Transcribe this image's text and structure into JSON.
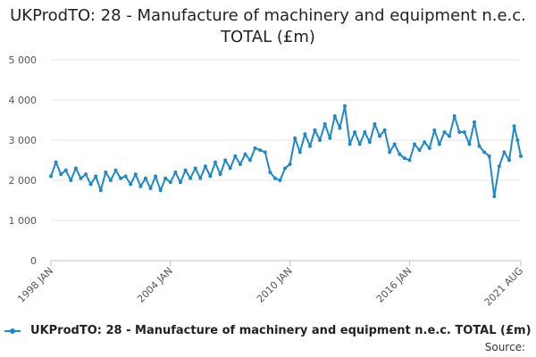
{
  "colors": {
    "series": "#1f88c9",
    "grid": "#e6e6e6",
    "axis": "#c0c0c0"
  },
  "chart_data": {
    "type": "line",
    "title": "UKProdTO: 28 - Manufacture of machinery and equipment n.e.c. TOTAL (£m)",
    "xlabel": "",
    "ylabel": "",
    "ylim": [
      0,
      5000
    ],
    "y_ticks": [
      "0",
      "1 000",
      "2 000",
      "3 000",
      "4 000",
      "5 000"
    ],
    "x_ticks": [
      "1998 JAN",
      "2004 JAN",
      "2010 JAN",
      "2016 JAN",
      "2021 AUG"
    ],
    "x_range": [
      "1998-01",
      "2021-08"
    ],
    "grid": true,
    "legend_position": "bottom",
    "series": [
      {
        "name": "UKProdTO: 28 - Manufacture of machinery and equipment n.e.c. TOTAL (£m)",
        "points": [
          [
            "1998-01",
            2100
          ],
          [
            "1998-04",
            2450
          ],
          [
            "1998-07",
            2150
          ],
          [
            "1998-10",
            2250
          ],
          [
            "1999-01",
            2000
          ],
          [
            "1999-04",
            2300
          ],
          [
            "1999-07",
            2050
          ],
          [
            "1999-10",
            2150
          ],
          [
            "2000-01",
            1900
          ],
          [
            "2000-04",
            2100
          ],
          [
            "2000-07",
            1750
          ],
          [
            "2000-10",
            2200
          ],
          [
            "2001-01",
            2000
          ],
          [
            "2001-04",
            2250
          ],
          [
            "2001-07",
            2050
          ],
          [
            "2001-10",
            2100
          ],
          [
            "2002-01",
            1900
          ],
          [
            "2002-04",
            2150
          ],
          [
            "2002-07",
            1850
          ],
          [
            "2002-10",
            2050
          ],
          [
            "2003-01",
            1800
          ],
          [
            "2003-04",
            2100
          ],
          [
            "2003-07",
            1750
          ],
          [
            "2003-10",
            2050
          ],
          [
            "2004-01",
            1950
          ],
          [
            "2004-04",
            2200
          ],
          [
            "2004-07",
            1950
          ],
          [
            "2004-10",
            2250
          ],
          [
            "2005-01",
            2050
          ],
          [
            "2005-04",
            2300
          ],
          [
            "2005-07",
            2050
          ],
          [
            "2005-10",
            2350
          ],
          [
            "2006-01",
            2100
          ],
          [
            "2006-04",
            2450
          ],
          [
            "2006-07",
            2150
          ],
          [
            "2006-10",
            2500
          ],
          [
            "2007-01",
            2300
          ],
          [
            "2007-04",
            2600
          ],
          [
            "2007-07",
            2400
          ],
          [
            "2007-10",
            2650
          ],
          [
            "2008-01",
            2500
          ],
          [
            "2008-04",
            2800
          ],
          [
            "2008-07",
            2750
          ],
          [
            "2008-10",
            2700
          ],
          [
            "2009-01",
            2200
          ],
          [
            "2009-04",
            2050
          ],
          [
            "2009-07",
            2000
          ],
          [
            "2009-10",
            2300
          ],
          [
            "2010-01",
            2400
          ],
          [
            "2010-04",
            3050
          ],
          [
            "2010-07",
            2700
          ],
          [
            "2010-10",
            3150
          ],
          [
            "2011-01",
            2850
          ],
          [
            "2011-04",
            3250
          ],
          [
            "2011-07",
            3000
          ],
          [
            "2011-10",
            3400
          ],
          [
            "2012-01",
            3050
          ],
          [
            "2012-04",
            3600
          ],
          [
            "2012-07",
            3300
          ],
          [
            "2012-10",
            3850
          ],
          [
            "2013-01",
            2900
          ],
          [
            "2013-04",
            3200
          ],
          [
            "2013-07",
            2900
          ],
          [
            "2013-10",
            3200
          ],
          [
            "2014-01",
            2950
          ],
          [
            "2014-04",
            3400
          ],
          [
            "2014-07",
            3100
          ],
          [
            "2014-10",
            3250
          ],
          [
            "2015-01",
            2700
          ],
          [
            "2015-04",
            2900
          ],
          [
            "2015-07",
            2650
          ],
          [
            "2015-10",
            2550
          ],
          [
            "2016-01",
            2500
          ],
          [
            "2016-04",
            2900
          ],
          [
            "2016-07",
            2750
          ],
          [
            "2016-10",
            2950
          ],
          [
            "2017-01",
            2800
          ],
          [
            "2017-04",
            3250
          ],
          [
            "2017-07",
            2900
          ],
          [
            "2017-10",
            3200
          ],
          [
            "2018-01",
            3100
          ],
          [
            "2018-04",
            3600
          ],
          [
            "2018-07",
            3200
          ],
          [
            "2018-10",
            3200
          ],
          [
            "2019-01",
            2900
          ],
          [
            "2019-04",
            3450
          ],
          [
            "2019-07",
            2850
          ],
          [
            "2019-10",
            2700
          ],
          [
            "2020-01",
            2600
          ],
          [
            "2020-04",
            1600
          ],
          [
            "2020-07",
            2350
          ],
          [
            "2020-10",
            2700
          ],
          [
            "2021-01",
            2500
          ],
          [
            "2021-04",
            3350
          ],
          [
            "2021-06",
            3000
          ],
          [
            "2021-08",
            2600
          ]
        ]
      }
    ]
  },
  "source_label": "Source:"
}
